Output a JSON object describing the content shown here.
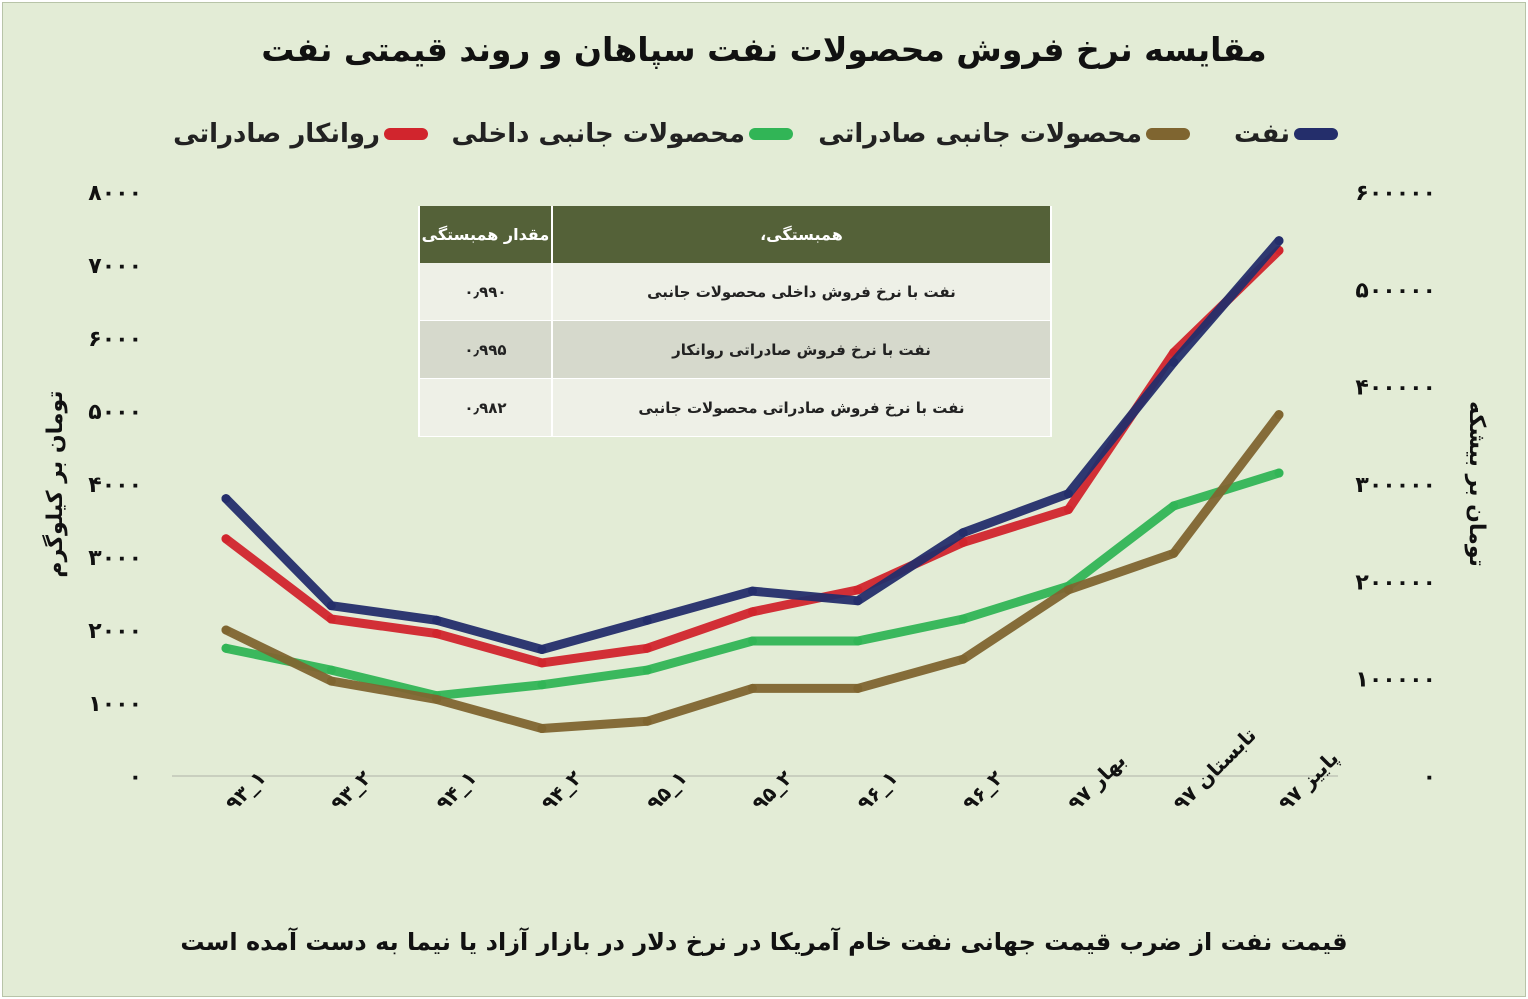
{
  "title": "مقایسه نرخ فروش محصولات نفت سپاهان و روند قیمتی نفت",
  "footnote": "قیمت نفت از ضرب قیمت جهانی نفت خام آمریکا در نرخ دلار در بازار آزاد یا نیما به دست آمده است",
  "legend": [
    {
      "label": "نفت",
      "color": "#242e6b"
    },
    {
      "label": "محصولات جانبی صادراتی",
      "color": "#7f6530"
    },
    {
      "label": "محصولات جانبی داخلی",
      "color": "#31b556"
    },
    {
      "label": "روانکار صادراتی",
      "color": "#d1252d"
    }
  ],
  "table": {
    "headers": [
      "همبستگی،",
      "مقدار همبستگی"
    ],
    "rows": [
      {
        "label": "نفت با نرخ فروش داخلی محصولات جانبی",
        "value": "۰٫۹۹۰"
      },
      {
        "label": "نفت با نرخ فروش صادراتی روانکار",
        "value": "۰٫۹۹۵"
      },
      {
        "label": "نفت با نرخ فروش صادراتی محصولات جانبی",
        "value": "۰٫۹۸۲"
      }
    ]
  },
  "chart_data": {
    "type": "line",
    "categories": [
      "۱_۹۳",
      "۲_۹۳",
      "۱_۹۴",
      "۲_۹۴",
      "۱_۹۵",
      "۲_۹۵",
      "۱_۹۶",
      "۲_۹۶",
      "بهار ۹۷",
      "تابستان ۹۷",
      "پاییز ۹۷"
    ],
    "ylabel_left": "تومان بر کیلوگرم",
    "ylabel_right": "تومان بر بیشکه",
    "ylim_left": [
      0,
      8000
    ],
    "ylim_right": [
      0,
      600000
    ],
    "yticks_left": [
      "۰",
      "۱۰۰۰",
      "۲۰۰۰",
      "۳۰۰۰",
      "۴۰۰۰",
      "۵۰۰۰",
      "۶۰۰۰",
      "۷۰۰۰",
      "۸۰۰۰"
    ],
    "yticks_right": [
      "۰",
      "۱۰۰۰۰۰",
      "۲۰۰۰۰۰",
      "۳۰۰۰۰۰",
      "۴۰۰۰۰۰",
      "۵۰۰۰۰۰",
      "۶۰۰۰۰۰"
    ],
    "series": [
      {
        "name": "محصولات جانبی داخلی",
        "axis": "left",
        "color": "#31b556",
        "values": [
          1750,
          1450,
          1100,
          1250,
          1450,
          1850,
          1850,
          2150,
          2600,
          3700,
          4150
        ]
      },
      {
        "name": "محصولات جانبی صادراتی",
        "axis": "left",
        "color": "#7f6530",
        "values": [
          2000,
          1300,
          1050,
          650,
          750,
          1200,
          1200,
          1600,
          2550,
          3050,
          4950
        ]
      },
      {
        "name": "روانکار صادراتی",
        "axis": "left",
        "color": "#d1252d",
        "values": [
          3250,
          2150,
          1950,
          1550,
          1750,
          2250,
          2550,
          3200,
          3650,
          5800,
          7200
        ]
      },
      {
        "name": "نفت",
        "axis": "right",
        "color": "#242e6b",
        "values": [
          285000,
          175000,
          160000,
          130000,
          160000,
          190000,
          180000,
          250000,
          290000,
          425000,
          550000
        ]
      }
    ]
  }
}
